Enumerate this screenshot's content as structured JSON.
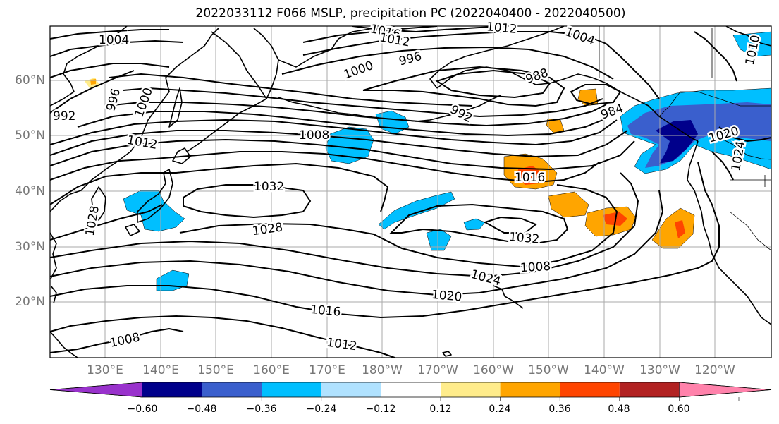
{
  "title": "2022033112 F066 MSLP, precipitation PC (2022040400 - 2022040500)",
  "lat_labels": [
    "60°N",
    "50°N",
    "40°N",
    "30°N",
    "20°N"
  ],
  "lon_labels": [
    "130°E",
    "140°E",
    "150°E",
    "160°E",
    "170°E",
    "180°W",
    "170°W",
    "160°W",
    "150°W",
    "140°W",
    "130°W",
    "120°W"
  ],
  "isobar_labels": [
    "1004",
    "1016",
    "1012",
    "1004",
    "1010",
    "1012",
    "996",
    "1000",
    "988",
    "992",
    "996",
    "1000",
    "984",
    "992",
    "1008",
    "1012",
    "1020",
    "1024",
    "1016",
    "1032",
    "1028",
    "1032",
    "1028",
    "1024",
    "1020",
    "1016",
    "1008",
    "1012",
    "1008"
  ],
  "colorbar": {
    "ticks": [
      "−0.60",
      "−0.48",
      "−0.36",
      "−0.24",
      "−0.12",
      "0.12",
      "0.24",
      "0.36",
      "0.48",
      "0.60"
    ],
    "colors": [
      "#9932cc",
      "#00008b",
      "#3a5fcd",
      "#00bfff",
      "#b0e2ff",
      "#ffffff",
      "#ffec8b",
      "#ffa500",
      "#ff4500",
      "#b22222",
      "#ff82ab"
    ]
  }
}
